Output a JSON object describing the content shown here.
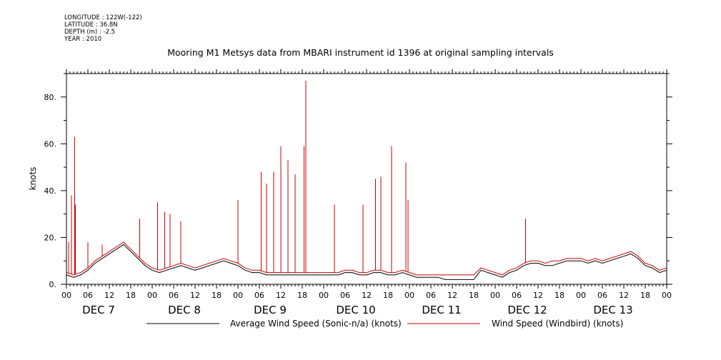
{
  "meta": {
    "longitude": "LONGITUDE : 122W(-122)",
    "latitude": "LATITUDE : 36.8N",
    "depth": "DEPTH (m) : -2.5",
    "year": "YEAR : 2010"
  },
  "chart_data": {
    "type": "line",
    "title": "Mooring M1 Metsys data from MBARI instrument id 1396 at original sampling intervals",
    "ylabel": "knots",
    "xlabel": "",
    "ylim": [
      0,
      90
    ],
    "yticks": [
      0,
      20,
      40,
      60,
      80
    ],
    "ytick_labels": [
      "0.",
      "20.",
      "40.",
      "60.",
      "80."
    ],
    "x_unit": "hours since DEC 7 00",
    "xlim": [
      0,
      168
    ],
    "hour_tick_labels": [
      "00",
      "06",
      "12",
      "18",
      "00",
      "06",
      "12",
      "18",
      "00",
      "06",
      "12",
      "18",
      "00",
      "06",
      "12",
      "18",
      "00",
      "06",
      "12",
      "18",
      "00",
      "06",
      "12",
      "18",
      "00",
      "06",
      "12",
      "18",
      "00"
    ],
    "day_labels": [
      "DEC  7",
      "DEC  8",
      "DEC  9",
      "DEC 10",
      "DEC 11",
      "DEC 12",
      "DEC 13"
    ],
    "grid": false,
    "legend_position": "bottom",
    "series": [
      {
        "name": "Average Wind Speed (Sonic-n/a) (knots)",
        "color": "#000000",
        "x": [
          0,
          2,
          4,
          6,
          8,
          10,
          12,
          14,
          16,
          18,
          20,
          22,
          24,
          26,
          28,
          30,
          32,
          34,
          36,
          38,
          40,
          42,
          44,
          46,
          48,
          50,
          52,
          54,
          56,
          58,
          60,
          62,
          64,
          66,
          68,
          70,
          72,
          74,
          76,
          78,
          80,
          82,
          84,
          86,
          88,
          90,
          92,
          94,
          96,
          98,
          100,
          102,
          104,
          106,
          108,
          110,
          112,
          114,
          116,
          118,
          120,
          122,
          124,
          126,
          128,
          130,
          132,
          134,
          136,
          138,
          140,
          142,
          144,
          146,
          148,
          150,
          152,
          154,
          156,
          158,
          160,
          162,
          164,
          166,
          168
        ],
        "values": [
          4,
          3,
          4,
          6,
          9,
          11,
          13,
          15,
          17,
          14,
          11,
          8,
          6,
          5,
          6,
          7,
          8,
          7,
          6,
          7,
          8,
          9,
          10,
          9,
          8,
          6,
          5,
          5,
          4,
          4,
          4,
          4,
          4,
          4,
          4,
          4,
          4,
          4,
          4,
          5,
          5,
          4,
          4,
          5,
          5,
          4,
          4,
          5,
          4,
          3,
          3,
          3,
          3,
          2,
          2,
          2,
          2,
          2,
          6,
          5,
          4,
          3,
          5,
          6,
          8,
          9,
          9,
          8,
          8,
          9,
          10,
          10,
          10,
          9,
          10,
          9,
          10,
          11,
          12,
          13,
          11,
          8,
          7,
          5,
          6
        ]
      },
      {
        "name": "Wind Speed (Windbird) (knots)",
        "color": "#cc0000",
        "x": [
          0,
          2,
          4,
          6,
          8,
          10,
          12,
          14,
          16,
          18,
          20,
          22,
          24,
          26,
          28,
          30,
          32,
          34,
          36,
          38,
          40,
          42,
          44,
          46,
          48,
          50,
          52,
          54,
          56,
          58,
          60,
          62,
          64,
          66,
          68,
          70,
          72,
          74,
          76,
          78,
          80,
          82,
          84,
          86,
          88,
          90,
          92,
          94,
          96,
          98,
          100,
          102,
          104,
          106,
          108,
          110,
          112,
          114,
          116,
          118,
          120,
          122,
          124,
          126,
          128,
          130,
          132,
          134,
          136,
          138,
          140,
          142,
          144,
          146,
          148,
          150,
          152,
          154,
          156,
          158,
          160,
          162,
          164,
          166,
          168
        ],
        "values": [
          5,
          4,
          5,
          7,
          10,
          12,
          14,
          16,
          18,
          15,
          12,
          9,
          7,
          6,
          7,
          8,
          9,
          8,
          7,
          8,
          9,
          10,
          11,
          10,
          9,
          7,
          6,
          6,
          5,
          5,
          5,
          5,
          5,
          5,
          5,
          5,
          5,
          5,
          5,
          6,
          6,
          5,
          5,
          6,
          6,
          5,
          5,
          6,
          5,
          4,
          4,
          4,
          4,
          4,
          4,
          4,
          4,
          4,
          7,
          6,
          5,
          4,
          6,
          7,
          9,
          10,
          10,
          9,
          10,
          10,
          11,
          11,
          11,
          10,
          11,
          10,
          11,
          12,
          13,
          14,
          12,
          9,
          8,
          6,
          7
        ],
        "spikes": [
          {
            "x": 0.6,
            "y": 18
          },
          {
            "x": 1.4,
            "y": 38
          },
          {
            "x": 2.3,
            "y": 63
          },
          {
            "x": 2.5,
            "y": 34
          },
          {
            "x": 6,
            "y": 18
          },
          {
            "x": 10,
            "y": 17
          },
          {
            "x": 20.5,
            "y": 28
          },
          {
            "x": 25.5,
            "y": 35
          },
          {
            "x": 27.5,
            "y": 31
          },
          {
            "x": 29,
            "y": 30
          },
          {
            "x": 32,
            "y": 27
          },
          {
            "x": 48,
            "y": 36
          },
          {
            "x": 54.5,
            "y": 48
          },
          {
            "x": 56,
            "y": 43
          },
          {
            "x": 58,
            "y": 48
          },
          {
            "x": 60,
            "y": 59
          },
          {
            "x": 62,
            "y": 53
          },
          {
            "x": 64,
            "y": 47
          },
          {
            "x": 66.5,
            "y": 59
          },
          {
            "x": 67,
            "y": 87
          },
          {
            "x": 75,
            "y": 34
          },
          {
            "x": 83,
            "y": 34
          },
          {
            "x": 86.5,
            "y": 45
          },
          {
            "x": 88,
            "y": 46
          },
          {
            "x": 91,
            "y": 59
          },
          {
            "x": 95,
            "y": 52
          },
          {
            "x": 95.6,
            "y": 36
          },
          {
            "x": 128.5,
            "y": 28
          }
        ]
      }
    ]
  },
  "legend": {
    "avg_label": "Average Wind Speed (Sonic-n/a) (knots)",
    "windbird_label": "Wind Speed (Windbird) (knots)"
  }
}
